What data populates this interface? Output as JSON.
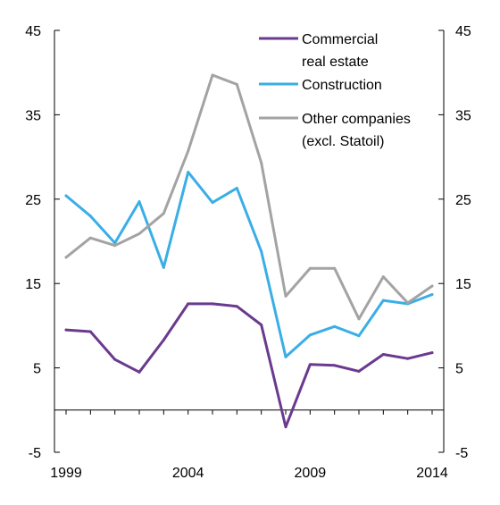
{
  "chart_data": {
    "type": "line",
    "title": "",
    "xlabel": "",
    "ylabel": "",
    "x": [
      1999,
      2000,
      2001,
      2002,
      2003,
      2004,
      2005,
      2006,
      2007,
      2008,
      2009,
      2010,
      2011,
      2012,
      2013,
      2014
    ],
    "x_ticks": [
      "1999",
      "2004",
      "2009",
      "2014"
    ],
    "ylim": [
      -5,
      45
    ],
    "y_ticks": [
      "-5",
      "5",
      "15",
      "25",
      "35",
      "45"
    ],
    "y_ticks_right": [
      "-5",
      "5",
      "15",
      "25",
      "35",
      "45"
    ],
    "zero_line": 0,
    "grid": false,
    "legend_position": "top-right",
    "series": [
      {
        "name": "Commercial real estate",
        "legend_lines": [
          "Commercial",
          "real estate"
        ],
        "color": "#6a3a8f",
        "values": [
          9.5,
          9.3,
          6.0,
          4.5,
          8.3,
          12.6,
          12.6,
          12.3,
          10.1,
          -2.0,
          5.4,
          5.3,
          4.6,
          6.6,
          6.1,
          6.8
        ]
      },
      {
        "name": "Construction",
        "legend_lines": [
          "Construction"
        ],
        "color": "#3aaee6",
        "values": [
          25.4,
          23.0,
          19.8,
          24.7,
          16.9,
          28.2,
          24.6,
          26.3,
          18.8,
          6.3,
          8.9,
          9.9,
          8.8,
          13.0,
          12.6,
          13.7
        ]
      },
      {
        "name": "Other companies (excl. Statoil)",
        "legend_lines": [
          "Other companies",
          "(excl. Statoil)"
        ],
        "color": "#a3a3a3",
        "values": [
          18.1,
          20.4,
          19.5,
          20.9,
          23.3,
          30.7,
          39.7,
          38.6,
          29.3,
          13.5,
          16.8,
          16.8,
          10.8,
          15.8,
          12.7,
          14.7
        ]
      }
    ]
  }
}
